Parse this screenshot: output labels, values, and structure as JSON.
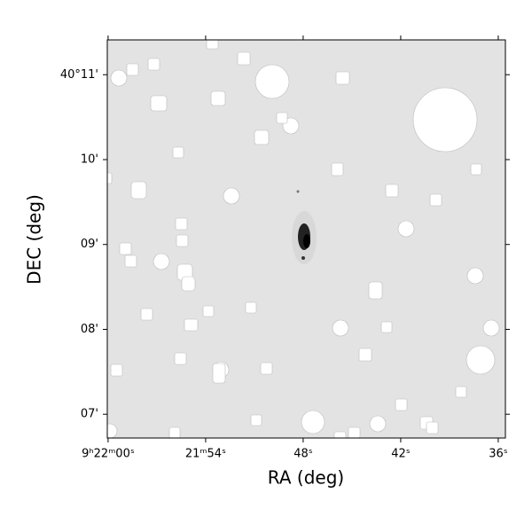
{
  "chart_data": {
    "type": "image",
    "xlabel": "RA (deg)",
    "ylabel": "DEC (deg)",
    "xlim": [
      60.05,
      35.56
    ],
    "ylim": [
      6.72,
      11.41
    ],
    "xticks": [
      {
        "value": 60,
        "label": "9ʰ22ᵐ00ˢ"
      },
      {
        "value": 54,
        "label": "21ᵐ54ˢ"
      },
      {
        "value": 48,
        "label": "48ˢ"
      },
      {
        "value": 42,
        "label": "42ˢ"
      },
      {
        "value": 36,
        "label": "36ˢ"
      }
    ],
    "yticks": [
      {
        "value": 11,
        "label": "40°11'"
      },
      {
        "value": 10,
        "label": "10'"
      },
      {
        "value": 9,
        "label": "09'"
      },
      {
        "value": 8,
        "label": "08'"
      },
      {
        "value": 7,
        "label": "07'"
      }
    ]
  }
}
